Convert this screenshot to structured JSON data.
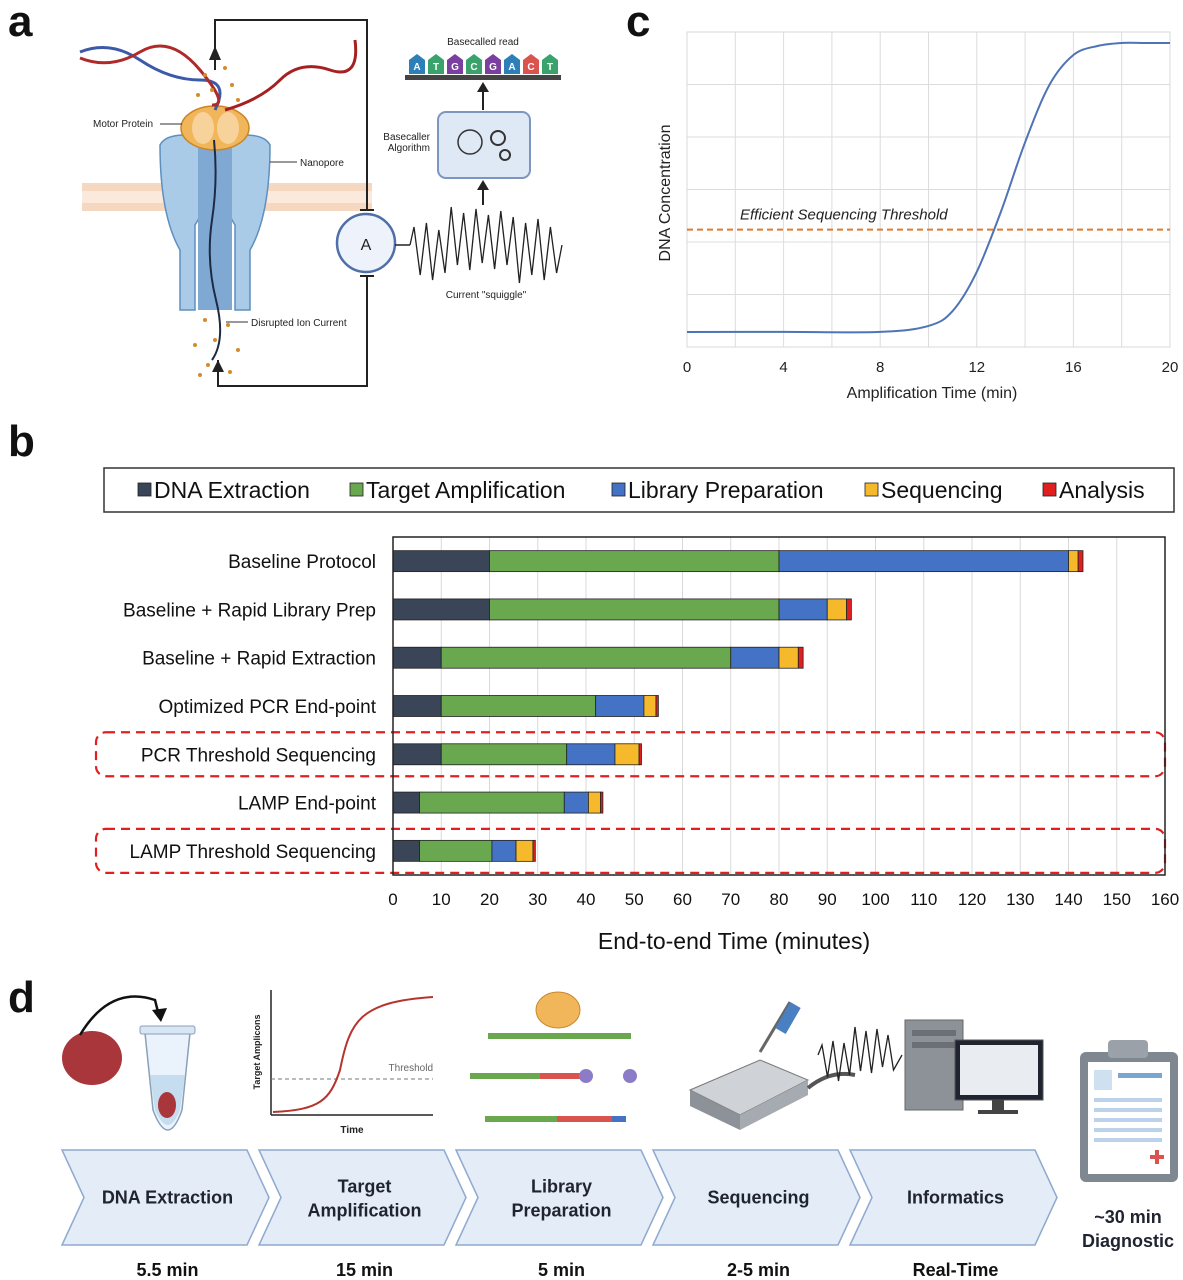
{
  "panels": {
    "a": "a",
    "b": "b",
    "c": "c",
    "d": "d"
  },
  "panel_a": {
    "basecalled_read": "Basecalled read",
    "bases": [
      "A",
      "T",
      "G",
      "C",
      "G",
      "A",
      "C",
      "T"
    ],
    "base_colors": [
      "#2d7fb8",
      "#3aa36b",
      "#7b3fa0",
      "#3aa36b",
      "#7b3fa0",
      "#2d7fb8",
      "#d9534f",
      "#3aa36b"
    ],
    "motor_protein": "Motor Protein",
    "nanopore": "Nanopore",
    "basecaller": [
      "Basecaller",
      "Algorithm"
    ],
    "ammeter": "A",
    "squiggle": "Current \"squiggle\"",
    "disrupted": "Disrupted Ion Current"
  },
  "chart_data": [
    {
      "type": "line",
      "xlabel": "Amplification Time (min)",
      "ylabel": "DNA Concentration",
      "xlim": [
        0,
        20
      ],
      "xticks": [
        "0",
        "4",
        "8",
        "12",
        "16",
        "20"
      ],
      "grid": true,
      "series": [
        {
          "x": [
            0,
            4,
            8,
            10,
            11,
            12,
            13,
            14,
            15,
            16,
            17,
            18,
            19,
            20
          ],
          "y": [
            0.05,
            0.05,
            0.05,
            0.07,
            0.12,
            0.25,
            0.45,
            0.68,
            0.87,
            0.97,
            1.0,
            1.01,
            1.01,
            1.01
          ],
          "color": "#4f73b5"
        }
      ],
      "threshold": {
        "label": "Efficient Sequencing Threshold",
        "y": 0.39,
        "color": "#e07a2e"
      }
    },
    {
      "type": "bar",
      "orientation": "horizontal",
      "stacked": true,
      "xlabel": "End-to-end Time (minutes)",
      "xlim": [
        0,
        160
      ],
      "xticks": [
        "0",
        "10",
        "20",
        "30",
        "40",
        "50",
        "60",
        "70",
        "80",
        "90",
        "100",
        "110",
        "120",
        "130",
        "140",
        "150",
        "160"
      ],
      "legend_position": "top",
      "categories": [
        "Baseline Protocol",
        "Baseline + Rapid Library Prep",
        "Baseline + Rapid Extraction",
        "Optimized PCR End-point",
        "PCR Threshold Sequencing",
        "LAMP End-point",
        "LAMP Threshold Sequencing"
      ],
      "highlighted": [
        4,
        6
      ],
      "series": [
        {
          "name": "DNA Extraction",
          "color": "#3a4558",
          "values": [
            20,
            20,
            10,
            10,
            10,
            5.5,
            5.5
          ]
        },
        {
          "name": "Target Amplification",
          "color": "#6aa84f",
          "values": [
            60,
            60,
            60,
            32,
            26,
            30,
            15
          ]
        },
        {
          "name": "Library Preparation",
          "color": "#4472c4",
          "values": [
            60,
            10,
            10,
            10,
            10,
            5,
            5
          ]
        },
        {
          "name": "Sequencing",
          "color": "#f6b92b",
          "values": [
            2,
            4,
            4,
            2.5,
            5,
            2.5,
            3.5
          ]
        },
        {
          "name": "Analysis",
          "color": "#e02020",
          "values": [
            1,
            1,
            1,
            0.5,
            0.5,
            0.5,
            0.5
          ]
        }
      ]
    }
  ],
  "panel_d": {
    "curve_ylabel": "Target Amplicons",
    "curve_xlabel": "Time",
    "threshold": "Threshold",
    "steps": [
      {
        "label": [
          "DNA Extraction"
        ],
        "time": "5.5 min"
      },
      {
        "label": [
          "Target",
          "Amplification"
        ],
        "time": "15 min"
      },
      {
        "label": [
          "Library",
          "Preparation"
        ],
        "time": "5 min"
      },
      {
        "label": [
          "Sequencing"
        ],
        "time": "2-5 min"
      },
      {
        "label": [
          "Informatics"
        ],
        "time": "Real-Time"
      }
    ],
    "result": [
      "~30 min",
      "Diagnostic"
    ]
  }
}
